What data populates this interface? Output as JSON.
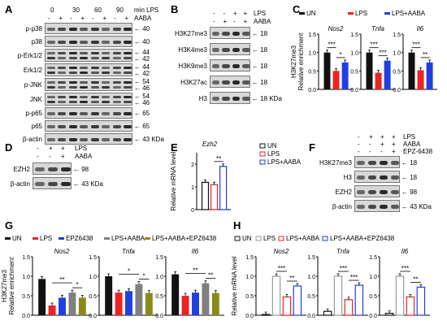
{
  "panels": {
    "A": {
      "label": "A",
      "time_points": [
        "0",
        "30",
        "60",
        "90"
      ],
      "time_unit": "min LPS",
      "aaba_label": "AABA",
      "aaba_signs": [
        "-",
        "+",
        "-",
        "+",
        "-",
        "+",
        "-",
        "+"
      ],
      "rows": [
        {
          "name": "p-p38",
          "kda": [
            "40"
          ]
        },
        {
          "name": "p38",
          "kda": [
            "40"
          ]
        },
        {
          "name": "p-Erk1/2",
          "kda": [
            "44",
            "42"
          ]
        },
        {
          "name": "Erk1/2",
          "kda": [
            "44",
            "42"
          ]
        },
        {
          "name": "p-JNK",
          "kda": [
            "54",
            "46"
          ]
        },
        {
          "name": "JNK",
          "kda": [
            "54",
            "46"
          ]
        },
        {
          "name": "p-p65",
          "kda": [
            "65"
          ]
        },
        {
          "name": "p65",
          "kda": [
            "65"
          ]
        },
        {
          "name": "β-actin",
          "kda": [
            "43 KDa"
          ]
        }
      ]
    },
    "B": {
      "label": "B",
      "lps_label": "LPS",
      "aaba_label": "AABA",
      "lps_signs": [
        "-",
        "-",
        "+",
        "+"
      ],
      "aaba_signs": [
        "-",
        "+",
        "-",
        "+"
      ],
      "rows": [
        {
          "name": "H3K27me3",
          "kda": "18"
        },
        {
          "name": "H3K4me3",
          "kda": "18"
        },
        {
          "name": "H3K9me3",
          "kda": "18"
        },
        {
          "name": "H3K27ac",
          "kda": "18"
        },
        {
          "name": "H3",
          "kda": "18 KDa"
        }
      ]
    },
    "C": {
      "label": "C"
    },
    "D": {
      "label": "D",
      "lps_label": "LPS",
      "aaba_label": "AABA",
      "lps_signs": [
        "-",
        "+",
        "+"
      ],
      "aaba_signs": [
        "-",
        "-",
        "+"
      ],
      "rows": [
        {
          "name": "EZH2",
          "kda": "98"
        },
        {
          "name": "β-actin",
          "kda": "43 KDa"
        }
      ]
    },
    "E": {
      "label": "E"
    },
    "F": {
      "label": "F",
      "lps_label": "LPS",
      "aaba_label": "AABA",
      "epz_label": "EPZ-6438",
      "lps_signs": [
        "-",
        "+",
        "+",
        "+"
      ],
      "aaba_signs": [
        "-",
        "-",
        "+",
        "+"
      ],
      "epz_signs": [
        "-",
        "-",
        "-",
        "+"
      ],
      "rows": [
        {
          "name": "H3K27me3",
          "kda": "18"
        },
        {
          "name": "H3",
          "kda": "18"
        },
        {
          "name": "EZH2",
          "kda": "98"
        },
        {
          "name": "β-actin",
          "kda": "43 KDa"
        }
      ]
    },
    "G": {
      "label": "G"
    },
    "H": {
      "label": "H"
    }
  },
  "chart_data": [
    {
      "id": "C",
      "type": "bar",
      "legend": [
        "UN",
        "LPS",
        "LPS+AABA"
      ],
      "colors": [
        "#111111",
        "#ee2222",
        "#1f3fe0"
      ],
      "ylabel": "H3K27me3\nRelative enrichment",
      "ylim": [
        0,
        1.5
      ],
      "yticks": [
        "0.0",
        "0.5",
        "1.0",
        "1.5"
      ],
      "groups": [
        {
          "name": "Nos2",
          "values": [
            1.0,
            0.5,
            0.73
          ],
          "sig": [
            [
              "***",
              0,
              1
            ],
            [
              "*",
              1,
              2
            ]
          ]
        },
        {
          "name": "Tnfa",
          "values": [
            1.0,
            0.45,
            0.78
          ],
          "sig": [
            [
              "***",
              0,
              1
            ],
            [
              "***",
              1,
              2
            ]
          ]
        },
        {
          "name": "Il6",
          "values": [
            1.0,
            0.52,
            0.73
          ],
          "sig": [
            [
              "***",
              0,
              1
            ],
            [
              "**",
              1,
              2
            ]
          ]
        }
      ]
    },
    {
      "id": "E",
      "type": "bar",
      "style": "outline",
      "legend": [
        "UN",
        "LPS",
        "LPS+AABA"
      ],
      "colors": [
        "#111111",
        "#ee2222",
        "#1f3fe0"
      ],
      "title": "Ezh2",
      "ylabel": "Relative mRNA level",
      "ylim": [
        0,
        2.5
      ],
      "yticks": [
        "0",
        "1",
        "2"
      ],
      "groups": [
        {
          "name": "",
          "values": [
            1.2,
            1.1,
            1.9
          ],
          "sig": [
            [
              "**",
              1,
              2
            ]
          ]
        }
      ]
    },
    {
      "id": "G",
      "type": "bar",
      "legend": [
        "UN",
        "LPS",
        "EPZ6438",
        "LPS+AABA",
        "LPS+AABA+EPZ6438"
      ],
      "colors": [
        "#111111",
        "#ee2222",
        "#1f3fe0",
        "#808080",
        "#8a8a1a"
      ],
      "ylabel": "H3K27me3\nRelative enrichment",
      "ylim": [
        0,
        1.5
      ],
      "yticks": [
        "0.0",
        "0.5",
        "1.0",
        "1.5"
      ],
      "groups": [
        {
          "name": "Nos2",
          "values": [
            0.93,
            0.25,
            0.45,
            0.58,
            0.45
          ],
          "sig": [
            [
              "**",
              1,
              3
            ],
            [
              "*",
              3,
              4
            ]
          ]
        },
        {
          "name": "Tnfa",
          "values": [
            1.0,
            0.58,
            0.62,
            0.8,
            0.57
          ],
          "sig": [
            [
              "*",
              1,
              3
            ],
            [
              "*",
              3,
              4
            ]
          ]
        },
        {
          "name": "Il6",
          "values": [
            1.05,
            0.5,
            0.58,
            0.82,
            0.57
          ],
          "sig": [
            [
              "**",
              1,
              3
            ],
            [
              "**",
              3,
              4
            ]
          ]
        }
      ]
    },
    {
      "id": "H",
      "type": "bar",
      "style": "outline",
      "legend": [
        "UN",
        "LPS",
        "LPS+AABA",
        "LPS+AABA+EPZ6438"
      ],
      "colors": [
        "#111111",
        "#999999",
        "#ee2222",
        "#1f3fe0"
      ],
      "ylabel": "Relative mRNA level",
      "ylim": [
        0,
        1.5
      ],
      "yticks": [
        "0.0",
        "0.5",
        "1.0",
        "1.5"
      ],
      "groups": [
        {
          "name": "Nos2",
          "values": [
            0.02,
            1.0,
            0.47,
            0.75
          ],
          "sig": [
            [
              "***",
              1,
              2
            ],
            [
              "**",
              2,
              3
            ]
          ]
        },
        {
          "name": "Tnfa",
          "values": [
            0.1,
            1.0,
            0.4,
            0.77
          ],
          "sig": [
            [
              "***",
              1,
              2
            ],
            [
              "***",
              2,
              3
            ]
          ]
        },
        {
          "name": "Il6",
          "values": [
            0.05,
            1.0,
            0.47,
            0.72
          ],
          "sig": [
            [
              "***",
              1,
              2
            ],
            [
              "**",
              2,
              3
            ]
          ]
        }
      ]
    }
  ]
}
